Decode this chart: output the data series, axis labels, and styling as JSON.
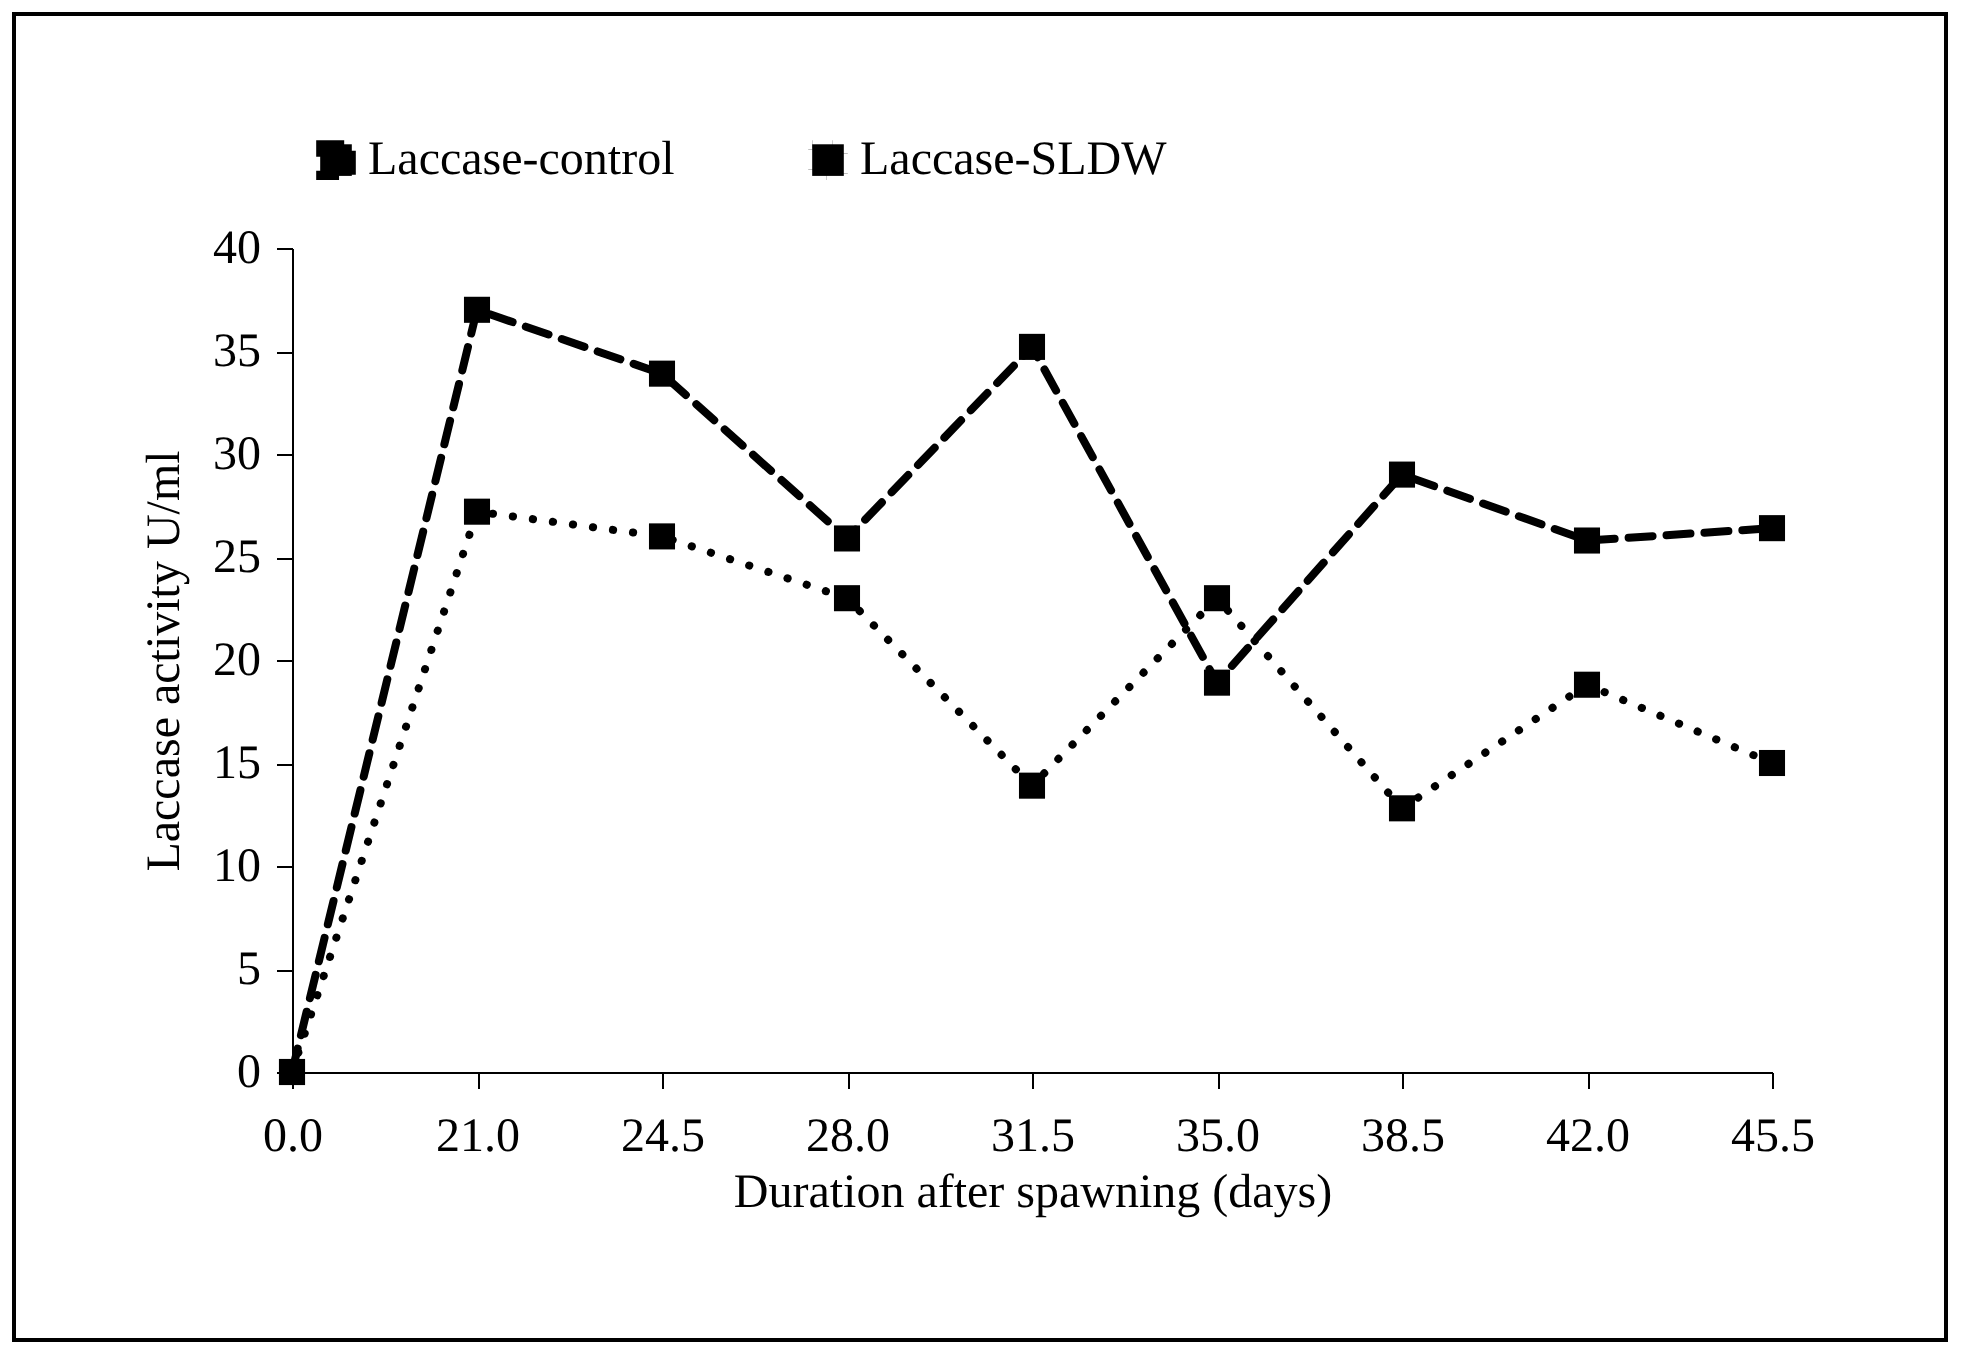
{
  "chart_data": {
    "type": "line",
    "xlabel": "Duration after spawning (days)",
    "ylabel": "Laccase activity U/ml",
    "categories": [
      "0.0",
      "21.0",
      "24.5",
      "28.0",
      "31.5",
      "35.0",
      "38.5",
      "42.0",
      "45.5"
    ],
    "series": [
      {
        "name": "Laccase-control",
        "color": "#000000",
        "line_style": "dashed",
        "values": [
          0,
          37.0,
          33.9,
          25.9,
          35.2,
          18.9,
          29.0,
          25.8,
          26.4
        ]
      },
      {
        "name": "Laccase-SLDW",
        "color": "#000000",
        "line_style": "dotted",
        "values": [
          0,
          27.2,
          26.0,
          23.0,
          13.9,
          23.0,
          12.8,
          18.8,
          15.0
        ]
      }
    ],
    "ylim": [
      0,
      40
    ],
    "yticks": [
      0,
      5,
      10,
      15,
      20,
      25,
      30,
      35,
      40
    ],
    "grid": false,
    "legend": "top",
    "marker": "square"
  }
}
